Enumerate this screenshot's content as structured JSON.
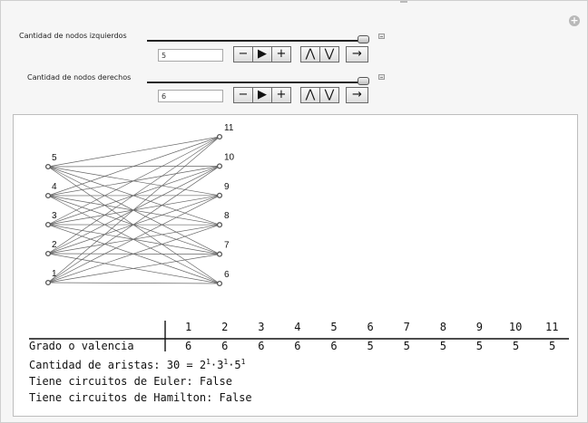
{
  "controls": [
    {
      "label": "Cantidad de nodos izquierdos",
      "value": "5",
      "slider_level": 1.0
    },
    {
      "label": "Cantidad de nodos derechos",
      "value": "6",
      "slider_level": 1.0
    }
  ],
  "player_buttons": {
    "minus": "−",
    "play": "▶",
    "plus": "+",
    "faster": "≫",
    "slower": "≪",
    "direction": "→"
  },
  "graph": {
    "left_labels": [
      "1",
      "2",
      "3",
      "4",
      "5"
    ],
    "right_labels": [
      "6",
      "7",
      "8",
      "9",
      "10",
      "11"
    ],
    "edge_color": "#666666",
    "node_color": "#555555"
  },
  "table": {
    "row_label": "Grado o valencia",
    "nodes": [
      "1",
      "2",
      "3",
      "4",
      "5",
      "6",
      "7",
      "8",
      "9",
      "10",
      "11"
    ],
    "degrees": [
      "6",
      "6",
      "6",
      "6",
      "6",
      "5",
      "5",
      "5",
      "5",
      "5",
      "5"
    ]
  },
  "summary": {
    "edges_prefix": "Cantidad de aristas: 30 = 2",
    "exp1": "1",
    "dot1": "·3",
    "exp2": "1",
    "dot2": "·5",
    "exp3": "1",
    "euler": "Tiene circuitos de Euler: False",
    "hamilton": "Tiene circuitos de Hamilton: False"
  }
}
